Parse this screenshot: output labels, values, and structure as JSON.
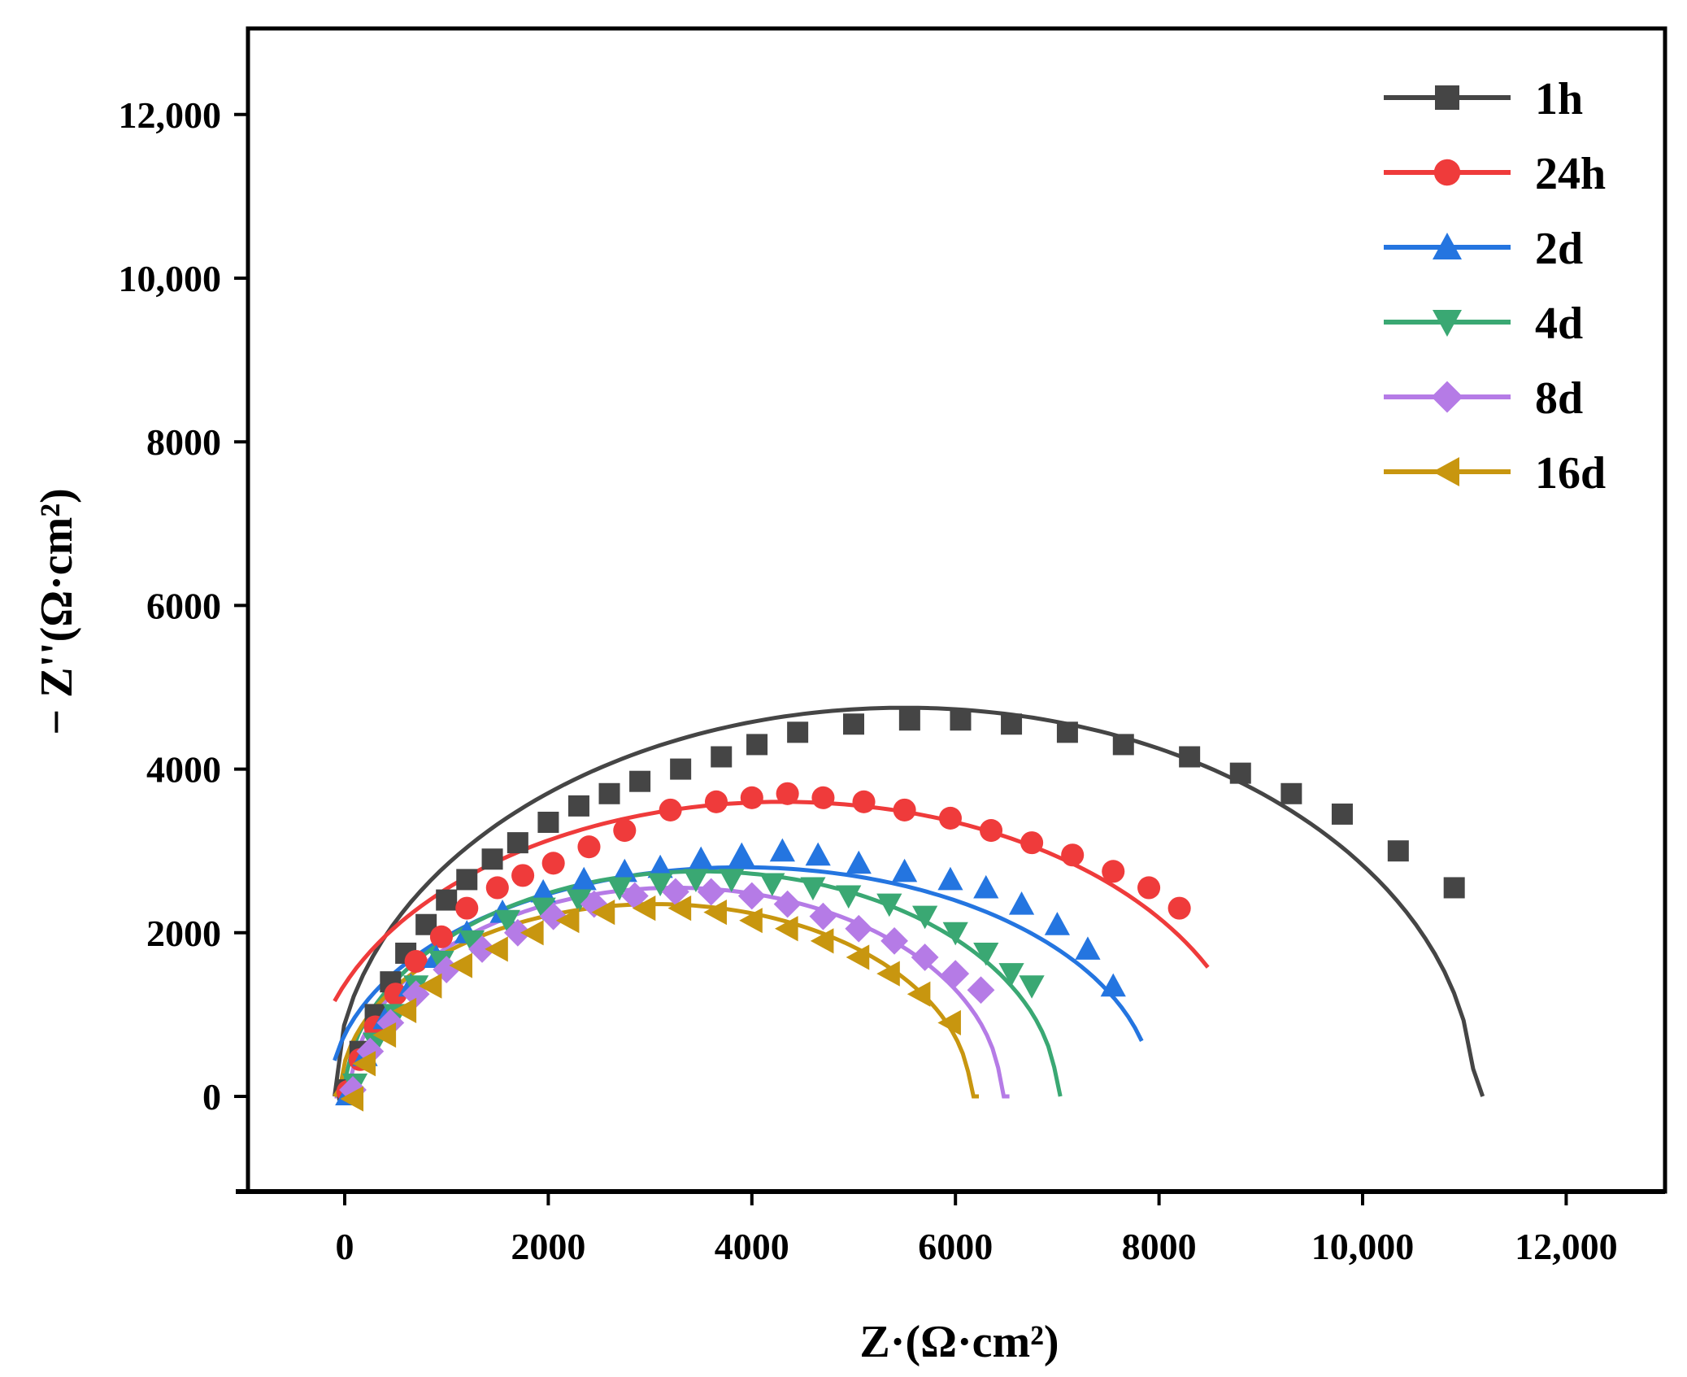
{
  "chart_data": {
    "type": "scatter",
    "title": "",
    "xlabel": "Z·(Ω·cm²)",
    "ylabel": "− Z''(Ω·cm²)",
    "xlim": [
      -1000,
      13000
    ],
    "ylim": [
      -1000,
      13000
    ],
    "x_ticks": [
      0,
      2000,
      4000,
      6000,
      8000,
      10000,
      12000
    ],
    "x_tick_labels": [
      "0",
      "2000",
      "4000",
      "6000",
      "8000",
      "10,000",
      "12,000"
    ],
    "y_ticks": [
      0,
      2000,
      4000,
      6000,
      8000,
      10000,
      12000
    ],
    "y_tick_labels": [
      "0",
      "2000",
      "4000",
      "6000",
      "8000",
      "10,000",
      "12,000"
    ],
    "legend_position": "top-right",
    "series": [
      {
        "name": "1h",
        "color": "#454545",
        "marker": "square",
        "fit": {
          "center": 5500,
          "a": 5600,
          "b": 4750
        },
        "points": [
          [
            30,
            80
          ],
          [
            150,
            550
          ],
          [
            300,
            1000
          ],
          [
            450,
            1400
          ],
          [
            600,
            1750
          ],
          [
            800,
            2100
          ],
          [
            1000,
            2400
          ],
          [
            1200,
            2650
          ],
          [
            1450,
            2900
          ],
          [
            1700,
            3100
          ],
          [
            2000,
            3350
          ],
          [
            2300,
            3550
          ],
          [
            2600,
            3700
          ],
          [
            2900,
            3850
          ],
          [
            3300,
            4000
          ],
          [
            3700,
            4150
          ],
          [
            4050,
            4300
          ],
          [
            4450,
            4450
          ],
          [
            5000,
            4550
          ],
          [
            5550,
            4600
          ],
          [
            6050,
            4600
          ],
          [
            6550,
            4550
          ],
          [
            7100,
            4450
          ],
          [
            7650,
            4300
          ],
          [
            8300,
            4150
          ],
          [
            8800,
            3950
          ],
          [
            9300,
            3700
          ],
          [
            9800,
            3450
          ],
          [
            10350,
            3000
          ],
          [
            10900,
            2550
          ]
        ]
      },
      {
        "name": "24h",
        "color": "#ef3b3b",
        "marker": "circle",
        "fit": {
          "center": 4300,
          "a": 4650,
          "b": 3600
        },
        "points": [
          [
            30,
            60
          ],
          [
            150,
            450
          ],
          [
            300,
            850
          ],
          [
            500,
            1250
          ],
          [
            700,
            1650
          ],
          [
            950,
            1950
          ],
          [
            1200,
            2300
          ],
          [
            1500,
            2550
          ],
          [
            1750,
            2700
          ],
          [
            2050,
            2850
          ],
          [
            2400,
            3050
          ],
          [
            2750,
            3250
          ],
          [
            3200,
            3500
          ],
          [
            3650,
            3600
          ],
          [
            4000,
            3650
          ],
          [
            4350,
            3700
          ],
          [
            4700,
            3650
          ],
          [
            5100,
            3600
          ],
          [
            5500,
            3500
          ],
          [
            5950,
            3400
          ],
          [
            6350,
            3250
          ],
          [
            6750,
            3100
          ],
          [
            7150,
            2950
          ],
          [
            7550,
            2750
          ],
          [
            7900,
            2550
          ],
          [
            8200,
            2300
          ]
        ]
      },
      {
        "name": "2d",
        "color": "#2475e0",
        "marker": "triangle-up",
        "fit": {
          "center": 3900,
          "a": 4050,
          "b": 2800
        },
        "points": [
          [
            30,
            20
          ],
          [
            200,
            500
          ],
          [
            400,
            950
          ],
          [
            650,
            1350
          ],
          [
            900,
            1700
          ],
          [
            1200,
            2000
          ],
          [
            1550,
            2250
          ],
          [
            1950,
            2500
          ],
          [
            2350,
            2650
          ],
          [
            2750,
            2750
          ],
          [
            3100,
            2800
          ],
          [
            3500,
            2900
          ],
          [
            3900,
            2950
          ],
          [
            4300,
            3000
          ],
          [
            4650,
            2950
          ],
          [
            5050,
            2850
          ],
          [
            5500,
            2750
          ],
          [
            5950,
            2650
          ],
          [
            6300,
            2550
          ],
          [
            6650,
            2350
          ],
          [
            7000,
            2100
          ],
          [
            7300,
            1800
          ],
          [
            7550,
            1350
          ]
        ]
      },
      {
        "name": "4d",
        "color": "#3aa873",
        "marker": "triangle-down",
        "fit": {
          "center": 3500,
          "a": 3500,
          "b": 2750
        },
        "points": [
          [
            100,
            150
          ],
          [
            300,
            650
          ],
          [
            500,
            1000
          ],
          [
            700,
            1350
          ],
          [
            950,
            1650
          ],
          [
            1250,
            1900
          ],
          [
            1600,
            2150
          ],
          [
            1950,
            2300
          ],
          [
            2300,
            2400
          ],
          [
            2700,
            2550
          ],
          [
            3100,
            2600
          ],
          [
            3450,
            2650
          ],
          [
            3800,
            2650
          ],
          [
            4200,
            2600
          ],
          [
            4600,
            2550
          ],
          [
            4950,
            2450
          ],
          [
            5350,
            2350
          ],
          [
            5700,
            2200
          ],
          [
            6000,
            2000
          ],
          [
            6300,
            1750
          ],
          [
            6550,
            1500
          ],
          [
            6750,
            1350
          ]
        ]
      },
      {
        "name": "8d",
        "color": "#b57be6",
        "marker": "diamond",
        "fit": {
          "center": 3250,
          "a": 3200,
          "b": 2550
        },
        "points": [
          [
            80,
            80
          ],
          [
            250,
            550
          ],
          [
            450,
            900
          ],
          [
            700,
            1250
          ],
          [
            1000,
            1550
          ],
          [
            1350,
            1800
          ],
          [
            1700,
            2000
          ],
          [
            2050,
            2200
          ],
          [
            2450,
            2350
          ],
          [
            2850,
            2450
          ],
          [
            3250,
            2500
          ],
          [
            3600,
            2500
          ],
          [
            4000,
            2450
          ],
          [
            4350,
            2350
          ],
          [
            4700,
            2200
          ],
          [
            5050,
            2050
          ],
          [
            5400,
            1900
          ],
          [
            5700,
            1700
          ],
          [
            6000,
            1500
          ],
          [
            6250,
            1300
          ]
        ]
      },
      {
        "name": "16d",
        "color": "#c8960f",
        "marker": "triangle-left",
        "fit": {
          "center": 3050,
          "a": 3100,
          "b": 2350
        },
        "points": [
          [
            80,
            -30
          ],
          [
            200,
            400
          ],
          [
            400,
            750
          ],
          [
            600,
            1050
          ],
          [
            850,
            1350
          ],
          [
            1150,
            1600
          ],
          [
            1500,
            1800
          ],
          [
            1850,
            2000
          ],
          [
            2200,
            2150
          ],
          [
            2550,
            2250
          ],
          [
            2950,
            2300
          ],
          [
            3300,
            2300
          ],
          [
            3650,
            2250
          ],
          [
            4000,
            2150
          ],
          [
            4350,
            2050
          ],
          [
            4700,
            1900
          ],
          [
            5050,
            1700
          ],
          [
            5350,
            1500
          ],
          [
            5650,
            1250
          ],
          [
            5950,
            900
          ]
        ]
      }
    ]
  }
}
